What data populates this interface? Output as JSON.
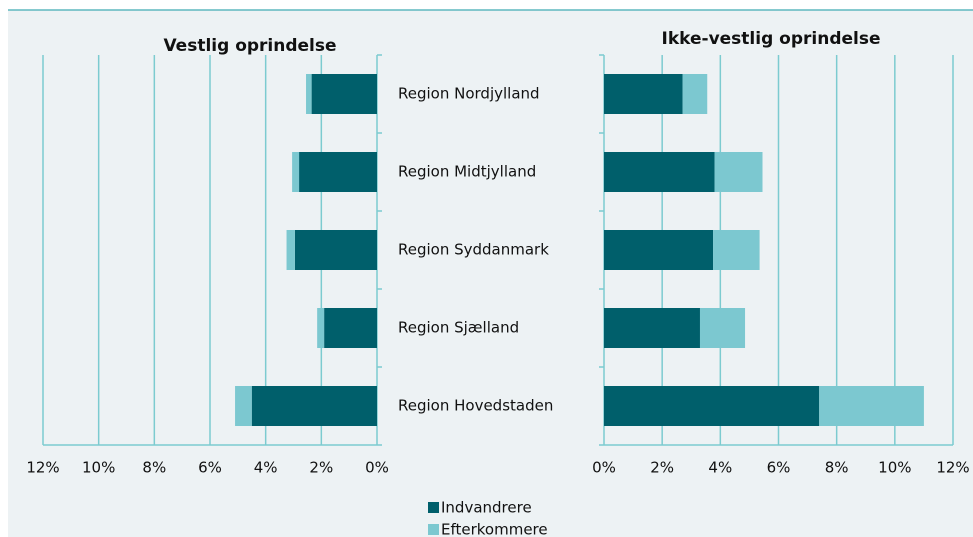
{
  "chart_data": [
    {
      "type": "bar",
      "orientation": "horizontal",
      "stacked": true,
      "x_reversed": true,
      "title": "Vestlig oprindelse",
      "categories": [
        "Region Nordjylland",
        "Region Midtjylland",
        "Region Syddanmark",
        "Region Sjælland",
        "Region Hovedstaden"
      ],
      "series": [
        {
          "name": "Indvandrere",
          "color": "#005f6b",
          "values": [
            2.35,
            2.8,
            2.95,
            1.9,
            4.5
          ]
        },
        {
          "name": "Efterkommere",
          "color": "#7cc8d0",
          "values": [
            0.2,
            0.25,
            0.3,
            0.25,
            0.6
          ]
        }
      ],
      "xlim": [
        0,
        12
      ],
      "xticks": [
        {
          "value": 12,
          "label": "12%"
        },
        {
          "value": 10,
          "label": "10%"
        },
        {
          "value": 8,
          "label": "8%"
        },
        {
          "value": 6,
          "label": "6%"
        },
        {
          "value": 4,
          "label": "4%"
        },
        {
          "value": 2,
          "label": "2%"
        },
        {
          "value": 0,
          "label": "0%"
        }
      ],
      "grid": true
    },
    {
      "type": "bar",
      "orientation": "horizontal",
      "stacked": true,
      "x_reversed": false,
      "title": "Ikke-vestlig oprindelse",
      "series": [
        {
          "color": "#005f6b",
          "values": [
            2.7,
            3.8,
            3.75,
            3.3,
            7.4
          ]
        },
        {
          "color": "#7cc8d0",
          "values": [
            0.85,
            1.65,
            1.6,
            1.55,
            3.6
          ]
        }
      ],
      "xlim": [
        0,
        12
      ],
      "xticks": [
        {
          "value": 0,
          "label": "0%"
        },
        {
          "value": 2,
          "label": "2%"
        },
        {
          "value": 4,
          "label": "4%"
        },
        {
          "value": 6,
          "label": "6%"
        },
        {
          "value": 8,
          "label": "8%"
        },
        {
          "value": 10,
          "label": "10%"
        },
        {
          "value": 12,
          "label": "12%"
        }
      ],
      "grid": true
    }
  ]
}
